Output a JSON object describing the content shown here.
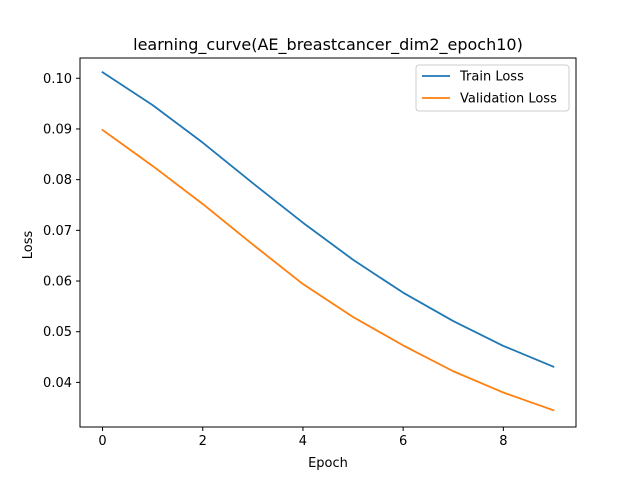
{
  "chart_data": {
    "type": "line",
    "title": "learning_curve(AE_breastcancer_dim2_epoch10)",
    "xlabel": "Epoch",
    "ylabel": "Loss",
    "xlim": [
      -0.45,
      9.45
    ],
    "ylim": [
      0.0312,
      0.104
    ],
    "xticks": [
      0,
      2,
      4,
      6,
      8
    ],
    "xtick_labels": [
      "0",
      "2",
      "4",
      "6",
      "8"
    ],
    "yticks": [
      0.04,
      0.05,
      0.06,
      0.07,
      0.08,
      0.09,
      0.1
    ],
    "ytick_labels": [
      "0.04",
      "0.05",
      "0.06",
      "0.07",
      "0.08",
      "0.09",
      "0.10"
    ],
    "grid": false,
    "legend_position": "top-right",
    "x": [
      0,
      1,
      2,
      3,
      4,
      5,
      6,
      7,
      8,
      9
    ],
    "series": [
      {
        "name": "Train Loss",
        "color": "#1f77b4",
        "values": [
          0.1012,
          0.0947,
          0.0873,
          0.0793,
          0.0715,
          0.0642,
          0.0577,
          0.0521,
          0.0472,
          0.0431
        ]
      },
      {
        "name": "Validation Loss",
        "color": "#ff7f0e",
        "values": [
          0.0898,
          0.0827,
          0.0752,
          0.0672,
          0.0594,
          0.0529,
          0.0473,
          0.0422,
          0.038,
          0.0345
        ]
      }
    ]
  }
}
